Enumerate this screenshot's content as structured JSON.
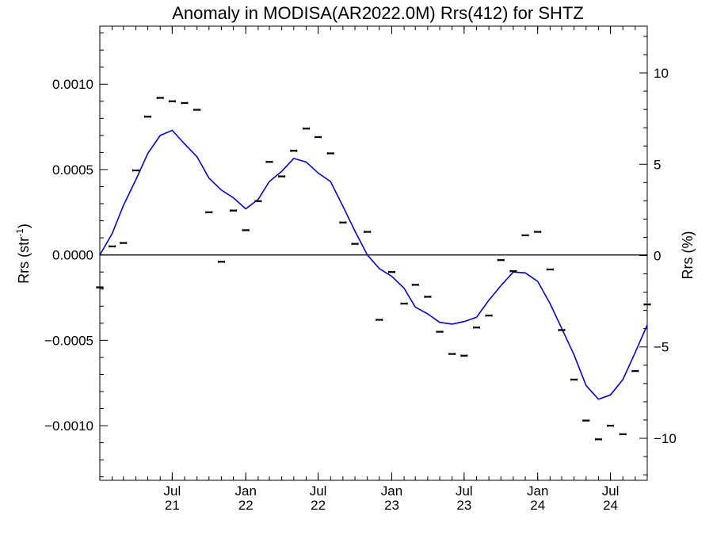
{
  "chart_data": {
    "type": "line",
    "title": "Anomaly in MODISA(AR2022.0M) Rrs(412) for SHTZ",
    "ylabel_left": "Rrs (str",
    "ylabel_left_sup": "-1",
    "ylabel_left_close": ")",
    "ylabel_right": "Rrs (%)",
    "ylim_left": [
      -0.00132,
      0.00134
    ],
    "ylim_right": [
      -12.3,
      12.56
    ],
    "left_ticks": [
      {
        "value": 0.001,
        "label": "0.0010"
      },
      {
        "value": 0.0005,
        "label": "0.0005"
      },
      {
        "value": 0.0,
        "label": "0.0000"
      },
      {
        "value": -0.0005,
        "label": "−0.0005"
      },
      {
        "value": -0.001,
        "label": "−0.0010"
      }
    ],
    "right_ticks": [
      {
        "value": 10,
        "label": "10"
      },
      {
        "value": 5,
        "label": "5"
      },
      {
        "value": 0,
        "label": "0"
      },
      {
        "value": -5,
        "label": "−5"
      },
      {
        "value": -10,
        "label": "−10"
      }
    ],
    "xlim": [
      "2021-01-01",
      "2024-10-01"
    ],
    "x_ticks": [
      {
        "date": "2021-07-01",
        "month": "Jul",
        "year": "21"
      },
      {
        "date": "2022-01-01",
        "month": "Jan",
        "year": "22"
      },
      {
        "date": "2022-07-01",
        "month": "Jul",
        "year": "22"
      },
      {
        "date": "2023-01-01",
        "month": "Jan",
        "year": "23"
      },
      {
        "date": "2023-07-01",
        "month": "Jul",
        "year": "23"
      },
      {
        "date": "2024-01-01",
        "month": "Jan",
        "year": "24"
      },
      {
        "date": "2024-07-01",
        "month": "Jul",
        "year": "24"
      }
    ],
    "zero_line": true,
    "series": [
      {
        "kind": "monthly_anomaly_points_with_error_bars",
        "color": "#000000",
        "points": [
          {
            "date": "2021-01-01",
            "y": -0.00019
          },
          {
            "date": "2021-02-01",
            "y": 5e-05
          },
          {
            "date": "2021-03-01",
            "y": 7e-05
          },
          {
            "date": "2021-04-01",
            "y": 0.000495
          },
          {
            "date": "2021-05-01",
            "y": 0.00081
          },
          {
            "date": "2021-06-01",
            "y": 0.00092
          },
          {
            "date": "2021-07-01",
            "y": 0.0009
          },
          {
            "date": "2021-08-01",
            "y": 0.00089
          },
          {
            "date": "2021-09-01",
            "y": 0.00085
          },
          {
            "date": "2021-10-01",
            "y": 0.00025
          },
          {
            "date": "2021-11-01",
            "y": -4e-05
          },
          {
            "date": "2021-12-01",
            "y": 0.00026
          },
          {
            "date": "2022-01-01",
            "y": 0.000145
          },
          {
            "date": "2022-02-01",
            "y": 0.000315
          },
          {
            "date": "2022-03-01",
            "y": 0.000545
          },
          {
            "date": "2022-04-01",
            "y": 0.00046
          },
          {
            "date": "2022-05-01",
            "y": 0.00061
          },
          {
            "date": "2022-06-01",
            "y": 0.00074
          },
          {
            "date": "2022-07-01",
            "y": 0.00069
          },
          {
            "date": "2022-08-01",
            "y": 0.000595
          },
          {
            "date": "2022-09-01",
            "y": 0.00019
          },
          {
            "date": "2022-10-01",
            "y": 6.5e-05
          },
          {
            "date": "2022-11-01",
            "y": 0.000135
          },
          {
            "date": "2022-12-01",
            "y": -0.00038
          },
          {
            "date": "2023-01-01",
            "y": -0.0001
          },
          {
            "date": "2023-02-01",
            "y": -0.000285
          },
          {
            "date": "2023-03-01",
            "y": -0.000175
          },
          {
            "date": "2023-04-01",
            "y": -0.000245
          },
          {
            "date": "2023-05-01",
            "y": -0.00045
          },
          {
            "date": "2023-06-01",
            "y": -0.00058
          },
          {
            "date": "2023-07-01",
            "y": -0.00059
          },
          {
            "date": "2023-08-01",
            "y": -0.000425
          },
          {
            "date": "2023-09-01",
            "y": -0.000355
          },
          {
            "date": "2023-10-01",
            "y": -3e-05
          },
          {
            "date": "2023-11-01",
            "y": -9.5e-05
          },
          {
            "date": "2023-12-01",
            "y": 0.000115
          },
          {
            "date": "2024-01-01",
            "y": 0.000135
          },
          {
            "date": "2024-02-01",
            "y": -8.5e-05
          },
          {
            "date": "2024-03-01",
            "y": -0.00044
          },
          {
            "date": "2024-04-01",
            "y": -0.00073
          },
          {
            "date": "2024-05-01",
            "y": -0.00097
          },
          {
            "date": "2024-06-01",
            "y": -0.00108
          },
          {
            "date": "2024-07-01",
            "y": -0.001
          },
          {
            "date": "2024-08-01",
            "y": -0.00105
          },
          {
            "date": "2024-09-01",
            "y": -0.00068
          },
          {
            "date": "2024-10-01",
            "y": -0.00029
          }
        ]
      },
      {
        "kind": "smoothed_line",
        "color": "#0000dd",
        "points": [
          {
            "date": "2021-01-01",
            "y": 0.0
          },
          {
            "date": "2021-02-01",
            "y": 0.000125
          },
          {
            "date": "2021-03-01",
            "y": 0.00029
          },
          {
            "date": "2021-04-01",
            "y": 0.00044
          },
          {
            "date": "2021-05-01",
            "y": 0.000595
          },
          {
            "date": "2021-06-01",
            "y": 0.0007
          },
          {
            "date": "2021-07-01",
            "y": 0.00073
          },
          {
            "date": "2021-08-01",
            "y": 0.00065
          },
          {
            "date": "2021-09-01",
            "y": 0.000575
          },
          {
            "date": "2021-10-01",
            "y": 0.00045
          },
          {
            "date": "2021-11-01",
            "y": 0.00038
          },
          {
            "date": "2021-12-01",
            "y": 0.000335
          },
          {
            "date": "2022-01-01",
            "y": 0.00027
          },
          {
            "date": "2022-02-01",
            "y": 0.000325
          },
          {
            "date": "2022-03-01",
            "y": 0.00043
          },
          {
            "date": "2022-04-01",
            "y": 0.00049
          },
          {
            "date": "2022-05-01",
            "y": 0.000565
          },
          {
            "date": "2022-06-01",
            "y": 0.000545
          },
          {
            "date": "2022-07-01",
            "y": 0.00048
          },
          {
            "date": "2022-08-01",
            "y": 0.00043
          },
          {
            "date": "2022-09-01",
            "y": 0.000285
          },
          {
            "date": "2022-10-01",
            "y": 0.00014
          },
          {
            "date": "2022-11-01",
            "y": -0.0
          },
          {
            "date": "2022-12-01",
            "y": -8e-05
          },
          {
            "date": "2023-01-01",
            "y": -0.000125
          },
          {
            "date": "2023-02-01",
            "y": -0.000195
          },
          {
            "date": "2023-03-01",
            "y": -0.000305
          },
          {
            "date": "2023-04-01",
            "y": -0.000345
          },
          {
            "date": "2023-05-01",
            "y": -0.000395
          },
          {
            "date": "2023-06-01",
            "y": -0.000405
          },
          {
            "date": "2023-07-01",
            "y": -0.00039
          },
          {
            "date": "2023-08-01",
            "y": -0.000365
          },
          {
            "date": "2023-09-01",
            "y": -0.000265
          },
          {
            "date": "2023-10-01",
            "y": -0.00018
          },
          {
            "date": "2023-11-01",
            "y": -0.0001
          },
          {
            "date": "2023-12-01",
            "y": -0.000105
          },
          {
            "date": "2024-01-01",
            "y": -0.000155
          },
          {
            "date": "2024-02-01",
            "y": -0.000285
          },
          {
            "date": "2024-03-01",
            "y": -0.00043
          },
          {
            "date": "2024-04-01",
            "y": -0.000585
          },
          {
            "date": "2024-05-01",
            "y": -0.000765
          },
          {
            "date": "2024-06-01",
            "y": -0.000845
          },
          {
            "date": "2024-07-01",
            "y": -0.00082
          },
          {
            "date": "2024-08-01",
            "y": -0.00073
          },
          {
            "date": "2024-09-01",
            "y": -0.00057
          },
          {
            "date": "2024-10-01",
            "y": -0.00041
          }
        ]
      }
    ]
  }
}
